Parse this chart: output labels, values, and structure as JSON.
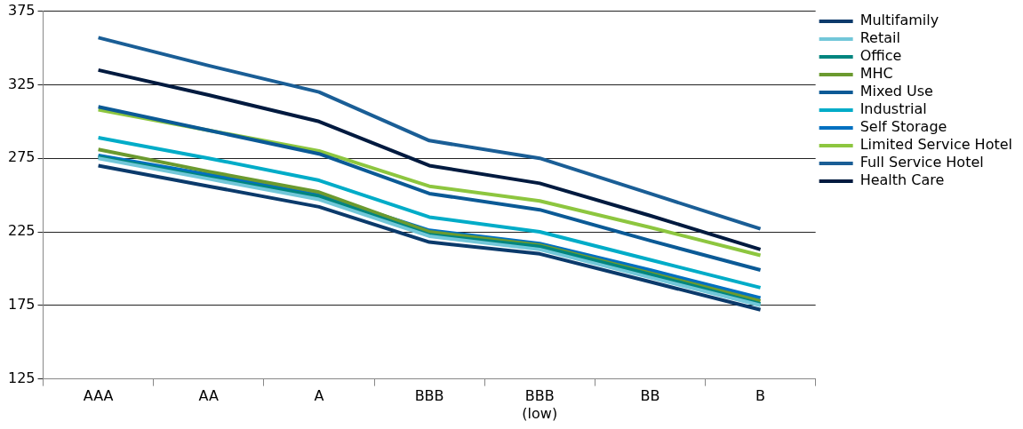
{
  "chart_data": {
    "type": "line",
    "categories": [
      "AAA",
      "AA",
      "A",
      "BBB",
      "BBB\n(low)",
      "BB",
      "B"
    ],
    "ylim": [
      125,
      375
    ],
    "yticks": [
      125,
      175,
      225,
      275,
      325,
      375
    ],
    "grid": "y",
    "legend": "right",
    "marker": "none",
    "line_style": "solid",
    "series": [
      {
        "name": "Multifamily",
        "color": "#0b3a6b",
        "values": [
          270,
          256,
          242,
          218,
          210,
          191,
          172
        ]
      },
      {
        "name": "Retail",
        "color": "#72c7d9",
        "values": [
          275,
          261,
          247,
          222,
          213,
          194,
          175
        ]
      },
      {
        "name": "Office",
        "color": "#00857f",
        "values": [
          276,
          262,
          249,
          223,
          215,
          196,
          176
        ]
      },
      {
        "name": "MHC",
        "color": "#6b9a2f",
        "values": [
          281,
          266,
          252,
          225,
          216,
          197,
          178
        ]
      },
      {
        "name": "Mixed Use",
        "color": "#0b5a96",
        "values": [
          310,
          294,
          278,
          251,
          240,
          219,
          199
        ]
      },
      {
        "name": "Industrial",
        "color": "#00acc8",
        "values": [
          289,
          275,
          260,
          235,
          225,
          206,
          187
        ]
      },
      {
        "name": "Self Storage",
        "color": "#0070c0",
        "values": [
          277,
          264,
          250,
          226,
          217,
          199,
          180
        ]
      },
      {
        "name": "Limited Service Hotel",
        "color": "#8dc63f",
        "values": [
          308,
          294,
          280,
          256,
          246,
          228,
          209
        ]
      },
      {
        "name": "Full Service Hotel",
        "color": "#1a5e96",
        "values": [
          357,
          338,
          320,
          287,
          275,
          251,
          227
        ]
      },
      {
        "name": "Health Care",
        "color": "#001a3f",
        "values": [
          335,
          318,
          300,
          270,
          258,
          236,
          213
        ]
      }
    ]
  }
}
